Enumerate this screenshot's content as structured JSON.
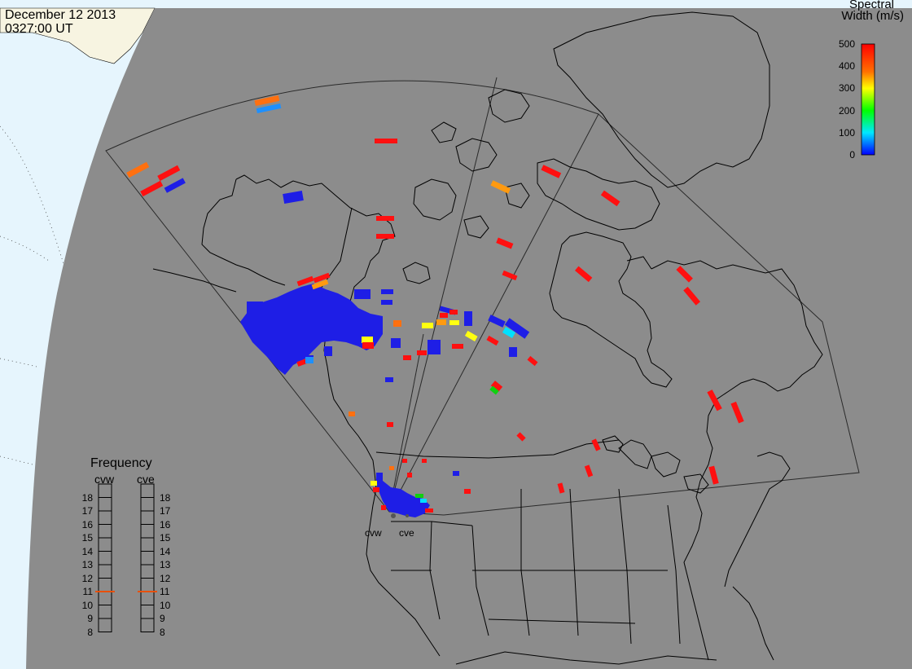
{
  "header": {
    "date": "December 12 2013",
    "time": "0327:00 UT"
  },
  "colorbar": {
    "title_line1": "Spectral",
    "title_line2": "Width (m/s)",
    "ticks": [
      500,
      400,
      300,
      200,
      100,
      0
    ],
    "range": [
      0,
      500
    ],
    "colors": [
      "#ff0000",
      "#ffff00",
      "#00ff00",
      "#00ffff",
      "#0000ff"
    ]
  },
  "frequency_panel": {
    "title": "Frequency",
    "radars": [
      {
        "name": "cvw",
        "value_mhz": 10.5
      },
      {
        "name": "cve",
        "value_mhz": 10.5
      }
    ],
    "scale": [
      "18",
      "17",
      "16",
      "15",
      "14",
      "13",
      "12",
      "11",
      "10",
      "9",
      "8"
    ],
    "scale_range": [
      8,
      18
    ],
    "marker_color": "#e8500a"
  },
  "sites": [
    {
      "name": "cvw"
    },
    {
      "name": "cve"
    }
  ],
  "colors": {
    "globe": "#8c8c8c",
    "ocean": "#e6f5fd",
    "land_corner": "#f7f4e1",
    "coastline": "#000000",
    "fov": "#222222"
  }
}
